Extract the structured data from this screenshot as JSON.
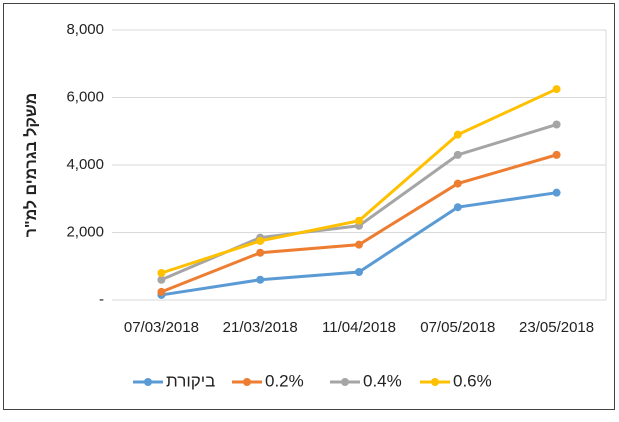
{
  "chart_data": {
    "type": "line",
    "y_label": "משקל בגרמים למ\"ר",
    "categories": [
      "07/03/2018",
      "21/03/2018",
      "11/04/2018",
      "07/05/2018",
      "23/05/2018"
    ],
    "series": [
      {
        "name": "ביקורת",
        "color": "#5b9bd5",
        "values": [
          150,
          600,
          830,
          2750,
          3180
        ]
      },
      {
        "name": "0.2%",
        "color": "#ed7d31",
        "values": [
          240,
          1400,
          1640,
          3450,
          4300
        ]
      },
      {
        "name": "0.4%",
        "color": "#a5a5a5",
        "values": [
          600,
          1850,
          2200,
          4300,
          5200
        ]
      },
      {
        "name": "0.6%",
        "color": "#ffc000",
        "values": [
          800,
          1750,
          2350,
          4900,
          6250
        ]
      }
    ],
    "ylim": [
      0,
      8000
    ],
    "yticks": [
      {
        "value": 0,
        "label": "-"
      },
      {
        "value": 2000,
        "label": "2,000"
      },
      {
        "value": 4000,
        "label": "4,000"
      },
      {
        "value": 6000,
        "label": "6,000"
      },
      {
        "value": 8000,
        "label": "8,000"
      }
    ],
    "grid": true,
    "legend": "bottom"
  }
}
